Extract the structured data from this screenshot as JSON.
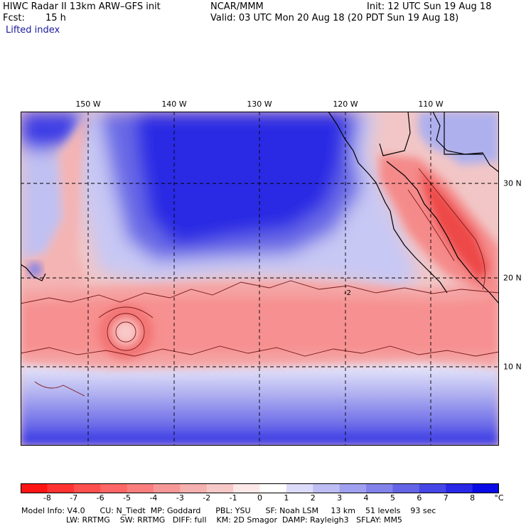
{
  "header": {
    "title": "HIWC Radar II 13km ARW–GFS init",
    "org": "NCAR/MMM",
    "init": "Init: 12 UTC Sun 19 Aug 18",
    "fcst_label": "Fcst:",
    "fcst_value": "15 h",
    "valid": "Valid: 03 UTC Mon 20 Aug 18 (20 PDT Sun 19 Aug 18)",
    "field": "Lifted index"
  },
  "map": {
    "lon_labels": [
      "150 W",
      "140 W",
      "130 W",
      "120 W",
      "110 W"
    ],
    "lat_labels": [
      "30 N",
      "20 N",
      "10 N"
    ],
    "contour_label": "-2"
  },
  "colorbar": {
    "labels": [
      "-8",
      "-7",
      "-6",
      "-5",
      "-4",
      "-3",
      "-2",
      "-1",
      "0",
      "1",
      "2",
      "3",
      "4",
      "5",
      "6",
      "7",
      "8"
    ],
    "unit": "°C",
    "colors": [
      "#ff1414",
      "#ff3232",
      "#ff4e4e",
      "#ff6666",
      "#fa7e7e",
      "#f79898",
      "#f5b0b0",
      "#f7c8c8",
      "#fde8e8",
      "#ffffff",
      "#dcdcfa",
      "#bebef5",
      "#a0a0f0",
      "#8282eb",
      "#6464e6",
      "#4646e6",
      "#2828e6",
      "#0a0ae6"
    ]
  },
  "footer": {
    "line1": "Model Info: V4.0      CU: N_Tiedt  MP: Goddard      PBL: YSU      SF: Noah LSM     13 km    51 levels    93 sec",
    "line2": "                  LW: RRTMG    SW: RRTMG   DIFF: full    KM: 2D Smagor  DAMP: Rayleigh3   SFLAY: MM5"
  }
}
